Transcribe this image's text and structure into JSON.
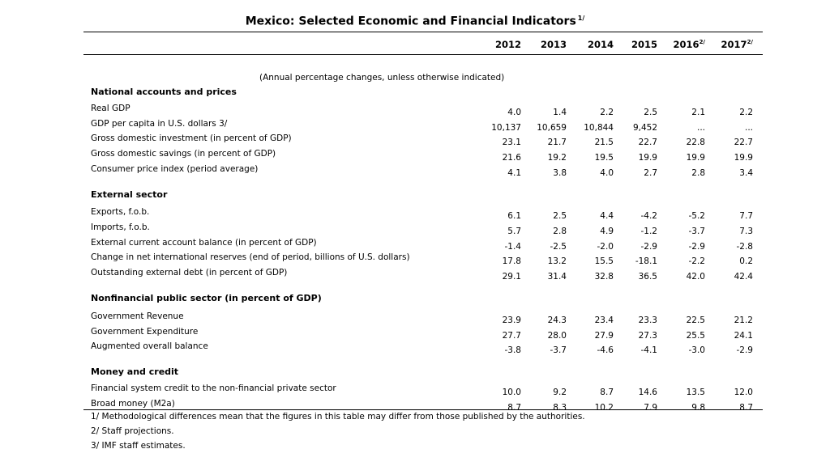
{
  "title": "Mexico: Selected Economic and Financial Indicators",
  "title_note": "1/",
  "years": [
    {
      "year": "2012",
      "sup": ""
    },
    {
      "year": "2013",
      "sup": ""
    },
    {
      "year": "2014",
      "sup": ""
    },
    {
      "year": "2015",
      "sup": ""
    },
    {
      "year": "2016",
      "sup": "2/"
    },
    {
      "year": "2017",
      "sup": "2/"
    }
  ],
  "subtitle": "(Annual percentage changes, unless otherwise indicated)",
  "sections": [
    {
      "name": "National accounts and prices",
      "rows": [
        {
          "label": "Real GDP",
          "values": [
            "4.0",
            "1.4",
            "2.2",
            "2.5",
            "2.1",
            "2.2"
          ]
        },
        {
          "label": "GDP per capita in U.S. dollars 3/",
          "values": [
            "10,137",
            "10,659",
            "10,844",
            "9,452",
            "...",
            "..."
          ]
        },
        {
          "label": "Gross domestic investment (in percent of GDP)",
          "values": [
            "23.1",
            "21.7",
            "21.5",
            "22.7",
            "22.8",
            "22.7"
          ]
        },
        {
          "label": "Gross domestic savings (in percent of GDP)",
          "values": [
            "21.6",
            "19.2",
            "19.5",
            "19.9",
            "19.9",
            "19.9"
          ]
        },
        {
          "label": "Consumer price index (period average)",
          "values": [
            "4.1",
            "3.8",
            "4.0",
            "2.7",
            "2.8",
            "3.4"
          ]
        }
      ]
    },
    {
      "name": "External sector",
      "rows": [
        {
          "label": "Exports, f.o.b.",
          "values": [
            "6.1",
            "2.5",
            "4.4",
            "-4.2",
            "-5.2",
            "7.7"
          ]
        },
        {
          "label": "Imports, f.o.b.",
          "values": [
            "5.7",
            "2.8",
            "4.9",
            "-1.2",
            "-3.7",
            "7.3"
          ]
        },
        {
          "label": "External current account balance (in percent of GDP)",
          "values": [
            "-1.4",
            "-2.5",
            "-2.0",
            "-2.9",
            "-2.9",
            "-2.8"
          ]
        },
        {
          "label": "Change in net international reserves (end of period, billions of U.S. dollars)",
          "values": [
            "17.8",
            "13.2",
            "15.5",
            "-18.1",
            "-2.2",
            "0.2"
          ]
        },
        {
          "label": "Outstanding external debt (in percent of GDP)",
          "values": [
            "29.1",
            "31.4",
            "32.8",
            "36.5",
            "42.0",
            "42.4"
          ]
        }
      ]
    },
    {
      "name": "Nonfinancial public sector (in percent of GDP)",
      "rows": [
        {
          "label": "Government Revenue",
          "values": [
            "23.9",
            "24.3",
            "23.4",
            "23.3",
            "22.5",
            "21.2"
          ]
        },
        {
          "label": "Government Expenditure",
          "values": [
            "27.7",
            "28.0",
            "27.9",
            "27.3",
            "25.5",
            "24.1"
          ]
        },
        {
          "label": "Augmented overall balance",
          "values": [
            "-3.8",
            "-3.7",
            "-4.6",
            "-4.1",
            "-3.0",
            "-2.9"
          ]
        }
      ]
    },
    {
      "name": "Money and credit",
      "rows": [
        {
          "label": "Financial system credit to the non-financial private sector",
          "values": [
            "10.0",
            "9.2",
            "8.7",
            "14.6",
            "13.5",
            "12.0"
          ]
        },
        {
          "label": "Broad money (M2a)",
          "values": [
            "8.7",
            "8.3",
            "10.2",
            "7.9",
            "9.8",
            "8.7"
          ]
        }
      ]
    }
  ],
  "footnotes": [
    "1/ Methodological differences mean that the figures in this table may differ from those published by the authorities.",
    "2/ Staff projections.",
    "3/ IMF staff estimates."
  ]
}
